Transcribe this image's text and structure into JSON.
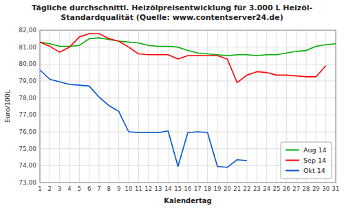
{
  "chart_data": {
    "type": "line",
    "title": "Tägliche durchschnittl. Heizölpreisentwicklung für 3.000 L Heizöl-\nStandardqualität (Quelle: www.contentserver24.de)",
    "x_label": "Kalendertag",
    "y_label": "Euro/100L",
    "x": [
      1,
      2,
      3,
      4,
      5,
      6,
      7,
      8,
      9,
      10,
      11,
      12,
      13,
      14,
      15,
      16,
      17,
      18,
      19,
      20,
      21,
      22,
      23,
      24,
      25,
      26,
      27,
      28,
      29,
      30,
      31
    ],
    "series": [
      {
        "name": "Aug 14",
        "color": "#00AA00",
        "values": [
          81.3,
          81.2,
          81.05,
          81.05,
          81.1,
          81.5,
          81.55,
          81.45,
          81.35,
          81.3,
          81.25,
          81.1,
          81.05,
          81.05,
          81.0,
          80.8,
          80.65,
          80.6,
          80.55,
          80.5,
          80.55,
          80.55,
          80.5,
          80.55,
          80.55,
          80.65,
          80.75,
          80.8,
          81.05,
          81.15,
          81.2
        ]
      },
      {
        "name": "Sep 14",
        "color": "#FF0000",
        "values": [
          81.3,
          81.05,
          80.7,
          81.0,
          81.6,
          81.8,
          81.8,
          81.5,
          81.35,
          81.0,
          80.6,
          80.55,
          80.55,
          80.55,
          80.3,
          80.5,
          80.5,
          80.5,
          80.5,
          80.3,
          78.9,
          79.35,
          79.55,
          79.5,
          79.35,
          79.35,
          79.3,
          79.25,
          79.25,
          79.9,
          null
        ]
      },
      {
        "name": "Okt 14",
        "color": "#0055CC",
        "values": [
          79.65,
          79.1,
          78.95,
          78.8,
          78.75,
          78.7,
          78.05,
          77.55,
          77.2,
          76.0,
          75.95,
          75.95,
          75.95,
          76.05,
          73.95,
          75.95,
          76.0,
          75.95,
          73.95,
          73.9,
          74.35,
          74.3,
          null,
          null,
          null,
          null,
          null,
          null,
          null,
          null,
          null
        ]
      }
    ],
    "xlim": [
      1,
      31
    ],
    "xticks": [
      1,
      2,
      3,
      4,
      5,
      6,
      7,
      8,
      9,
      10,
      11,
      12,
      13,
      14,
      15,
      16,
      17,
      18,
      19,
      20,
      21,
      22,
      23,
      24,
      25,
      26,
      27,
      28,
      29,
      30,
      31
    ],
    "ylim": [
      73.0,
      82.0
    ],
    "yticks": [
      {
        "value": 73.0,
        "label": "73,00"
      },
      {
        "value": 74.0,
        "label": "74,00"
      },
      {
        "value": 75.0,
        "label": "75,00"
      },
      {
        "value": 76.0,
        "label": "76,00"
      },
      {
        "value": 77.0,
        "label": "77,00"
      },
      {
        "value": 78.0,
        "label": "78,00"
      },
      {
        "value": 79.0,
        "label": "79,00"
      },
      {
        "value": 80.0,
        "label": "80,00"
      },
      {
        "value": 81.0,
        "label": "81,00"
      },
      {
        "value": 82.0,
        "label": "82,00"
      }
    ],
    "grid": true,
    "legend": "lower right"
  }
}
